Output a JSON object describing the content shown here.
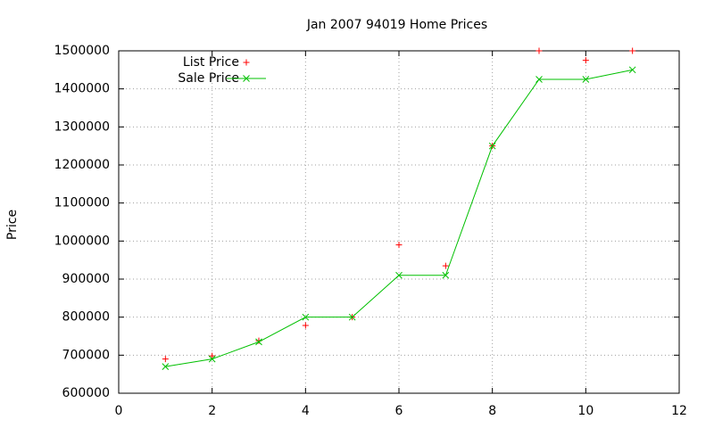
{
  "chart_data": {
    "type": "line",
    "title": "Jan 2007 94019 Home Prices",
    "y_label": "Price",
    "x": [
      1,
      2,
      3,
      4,
      5,
      6,
      7,
      8,
      9,
      10,
      11
    ],
    "series": [
      {
        "name": "List Price",
        "color": "#ff0000",
        "marker": "plus",
        "line": false,
        "values": [
          690000,
          698000,
          738000,
          778000,
          800000,
          990000,
          935000,
          1250000,
          1500000,
          1475000,
          1500000
        ]
      },
      {
        "name": "Sale Price",
        "color": "#00c000",
        "marker": "cross",
        "line": true,
        "values": [
          670000,
          690000,
          735000,
          800000,
          800000,
          910000,
          910000,
          1250000,
          1425000,
          1425000,
          1450000
        ]
      }
    ],
    "xlim": [
      0,
      12
    ],
    "xticks": [
      0,
      2,
      4,
      6,
      8,
      10,
      12
    ],
    "ylim": [
      600000,
      1500000
    ],
    "yticks": [
      600000,
      700000,
      800000,
      900000,
      1000000,
      1100000,
      1200000,
      1300000,
      1400000,
      1500000
    ],
    "grid": true,
    "legend": "top-left"
  }
}
